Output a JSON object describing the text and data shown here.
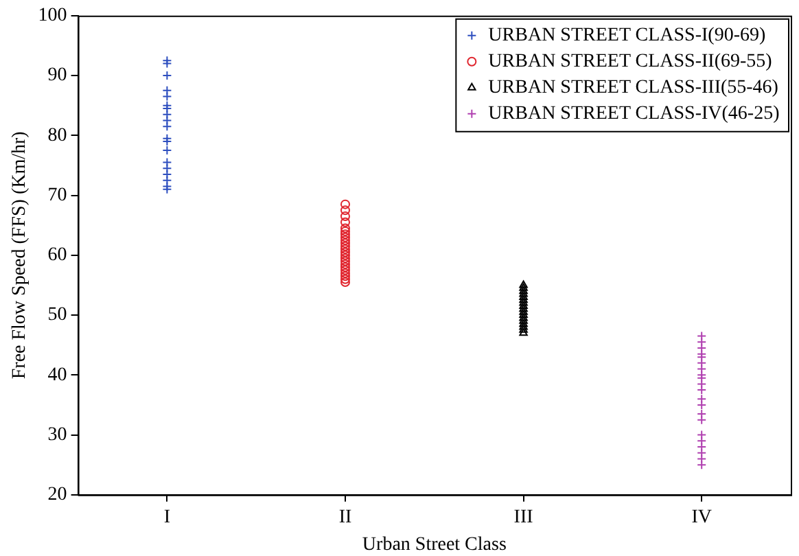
{
  "chart_data": {
    "type": "scatter",
    "xlabel": "Urban Street Class",
    "ylabel": "Free Flow Speed (FFS) (Km/hr)",
    "categories": [
      "I",
      "II",
      "III",
      "IV"
    ],
    "ylim": [
      20,
      100
    ],
    "yticks": [
      20,
      30,
      40,
      50,
      60,
      70,
      80,
      90,
      100
    ],
    "grid": false,
    "legend": "top right",
    "series": [
      {
        "name": "URBAN STREET CLASS-I(90-69)",
        "color": "#2e4fbf",
        "marker": "cross",
        "x": [
          "I",
          "I",
          "I",
          "I",
          "I",
          "I",
          "I",
          "I",
          "I",
          "I",
          "I",
          "I",
          "I",
          "I",
          "I",
          "I",
          "I",
          "I",
          "I"
        ],
        "values": [
          92.5,
          92,
          90,
          87.5,
          86.5,
          85,
          84.5,
          83.5,
          82.5,
          81.5,
          79.5,
          79,
          77.5,
          75.5,
          74.5,
          73.5,
          72.5,
          71.5,
          71
        ]
      },
      {
        "name": "URBAN STREET CLASS-II(69-55)",
        "color": "#e0262f",
        "marker": "circle",
        "x": [
          "II",
          "II",
          "II",
          "II",
          "II",
          "II",
          "II",
          "II",
          "II",
          "II",
          "II",
          "II",
          "II",
          "II",
          "II",
          "II",
          "II",
          "II",
          "II",
          "II",
          "II",
          "II",
          "II"
        ],
        "values": [
          68.5,
          67.5,
          66.5,
          65.5,
          64.5,
          64,
          63.5,
          63,
          62.5,
          62,
          61.5,
          61,
          60.5,
          60,
          59.5,
          59,
          58.5,
          58,
          57.5,
          57,
          56.5,
          56,
          55.5
        ]
      },
      {
        "name": "URBAN STREET CLASS-III(55-46)",
        "color": "#000000",
        "marker": "triangle",
        "x": [
          "III",
          "III",
          "III",
          "III",
          "III",
          "III",
          "III",
          "III",
          "III",
          "III",
          "III",
          "III",
          "III",
          "III",
          "III",
          "III",
          "III"
        ],
        "values": [
          55,
          54.5,
          54,
          53.5,
          53,
          52.5,
          52,
          51.5,
          51,
          50.5,
          50,
          49.5,
          49,
          48.5,
          48,
          47.5,
          47
        ]
      },
      {
        "name": "URBAN STREET CLASS-IV(46-25)",
        "color": "#b040b0",
        "marker": "cross",
        "x": [
          "IV",
          "IV",
          "IV",
          "IV",
          "IV",
          "IV",
          "IV",
          "IV",
          "IV",
          "IV",
          "IV",
          "IV",
          "IV",
          "IV",
          "IV",
          "IV",
          "IV",
          "IV",
          "IV",
          "IV",
          "IV"
        ],
        "values": [
          46.5,
          45.5,
          44.5,
          43.5,
          43,
          42,
          41,
          40,
          39.5,
          38.5,
          37.5,
          36,
          35,
          33.5,
          32.5,
          30,
          29,
          28,
          27,
          26,
          25
        ]
      }
    ]
  }
}
